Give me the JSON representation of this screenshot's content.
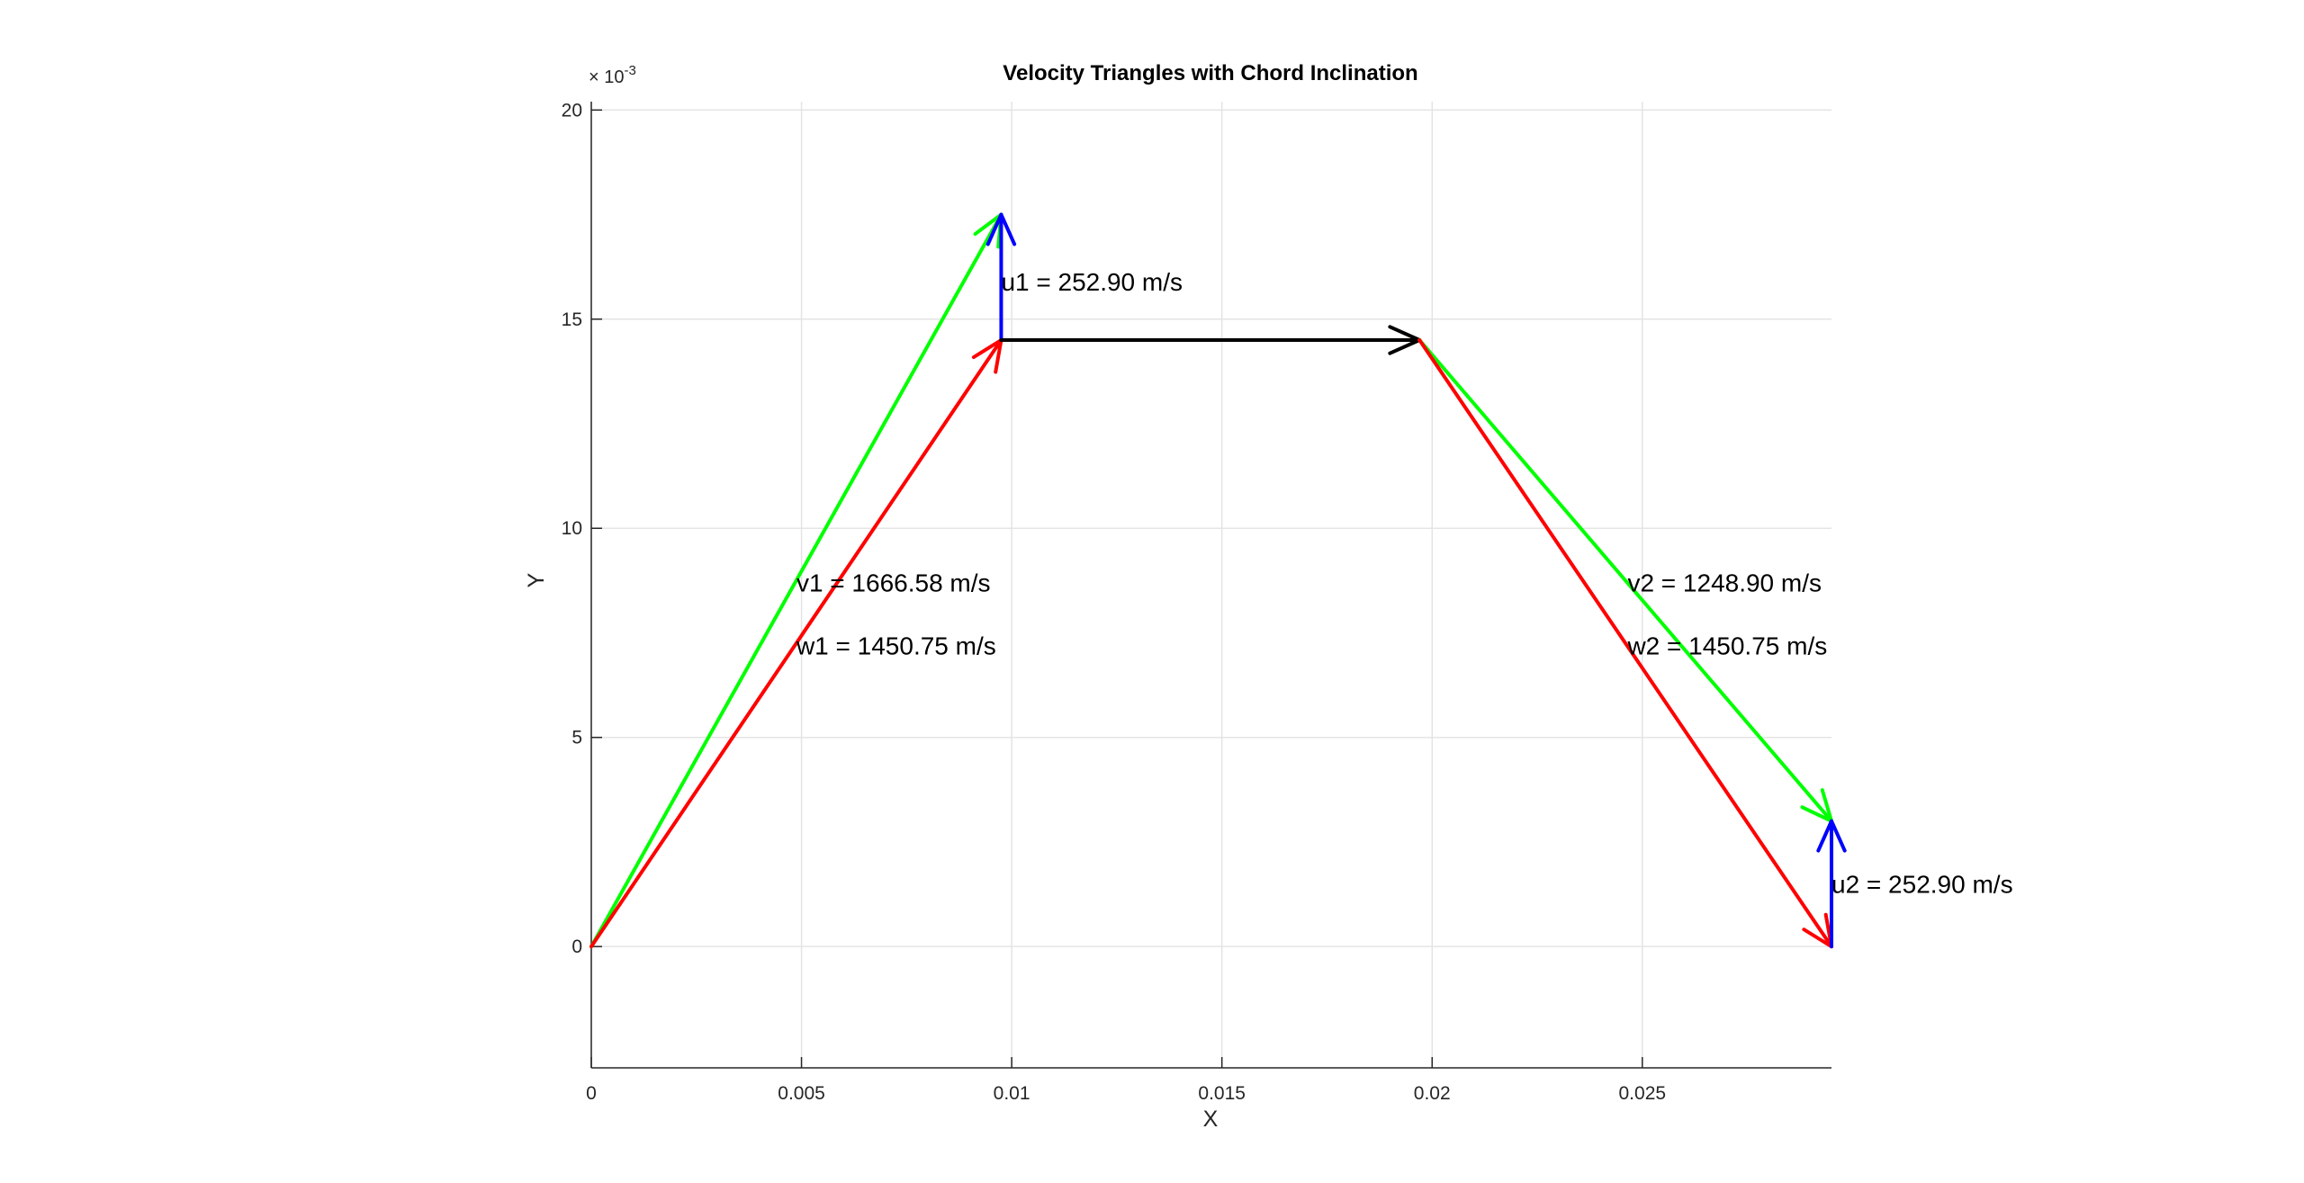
{
  "chart_data": {
    "type": "line",
    "title": "Velocity Triangles with Chord Inclination",
    "xlabel": "X",
    "ylabel": "Y",
    "xlim": [
      0,
      0.0295
    ],
    "ylim": [
      -2.9,
      20.2
    ],
    "y_scale_exponent": "× 10-3",
    "x_ticks": [
      0,
      0.005,
      0.01,
      0.015,
      0.02,
      0.025
    ],
    "x_tick_labels": [
      "0",
      "0.005",
      "0.01",
      "0.015",
      "0.02",
      "0.025"
    ],
    "y_ticks": [
      0,
      5,
      10,
      15,
      20
    ],
    "y_tick_labels": [
      "0",
      "5",
      "10",
      "15",
      "20"
    ],
    "grid": true,
    "legend": "none",
    "colors": {
      "green": "#00ff00",
      "red": "#ff0000",
      "blue": "#0000ff",
      "black": "#000000"
    },
    "series": [
      {
        "color": "#00ff00",
        "points": [
          [
            0,
            0
          ],
          [
            0.00975,
            17.5
          ]
        ],
        "arrow": "end"
      },
      {
        "color": "#ff0000",
        "points": [
          [
            0,
            0
          ],
          [
            0.00975,
            14.5
          ]
        ],
        "arrow": "end"
      },
      {
        "color": "#0000ff",
        "points": [
          [
            0.00975,
            14.5
          ],
          [
            0.00975,
            17.5
          ]
        ],
        "arrow": "end"
      },
      {
        "color": "#000000",
        "points": [
          [
            0.00975,
            14.5
          ],
          [
            0.0197,
            14.5
          ]
        ],
        "arrow": "end"
      },
      {
        "color": "#00ff00",
        "points": [
          [
            0.0197,
            14.5
          ],
          [
            0.0295,
            3.0
          ]
        ],
        "arrow": "end"
      },
      {
        "color": "#ff0000",
        "points": [
          [
            0.0197,
            14.5
          ],
          [
            0.0295,
            0
          ]
        ],
        "arrow": "end"
      },
      {
        "color": "#0000ff",
        "points": [
          [
            0.0295,
            0
          ],
          [
            0.0295,
            3.0
          ]
        ],
        "arrow": "end"
      }
    ],
    "annotations": [
      {
        "text": "u1 = 252.90 m/s",
        "x": 0.00975,
        "y": 15.9
      },
      {
        "text": "v1 = 1666.58 m/s",
        "x": 0.00488,
        "y": 8.7
      },
      {
        "text": "w1 = 1450.75 m/s",
        "x": 0.00488,
        "y": 7.2
      },
      {
        "text": "v2 = 1248.90 m/s",
        "x": 0.02465,
        "y": 8.7
      },
      {
        "text": "w2 = 1450.75 m/s",
        "x": 0.02465,
        "y": 7.2
      },
      {
        "text": "u2 = 252.90 m/s",
        "x": 0.0295,
        "y": 1.5
      }
    ]
  }
}
